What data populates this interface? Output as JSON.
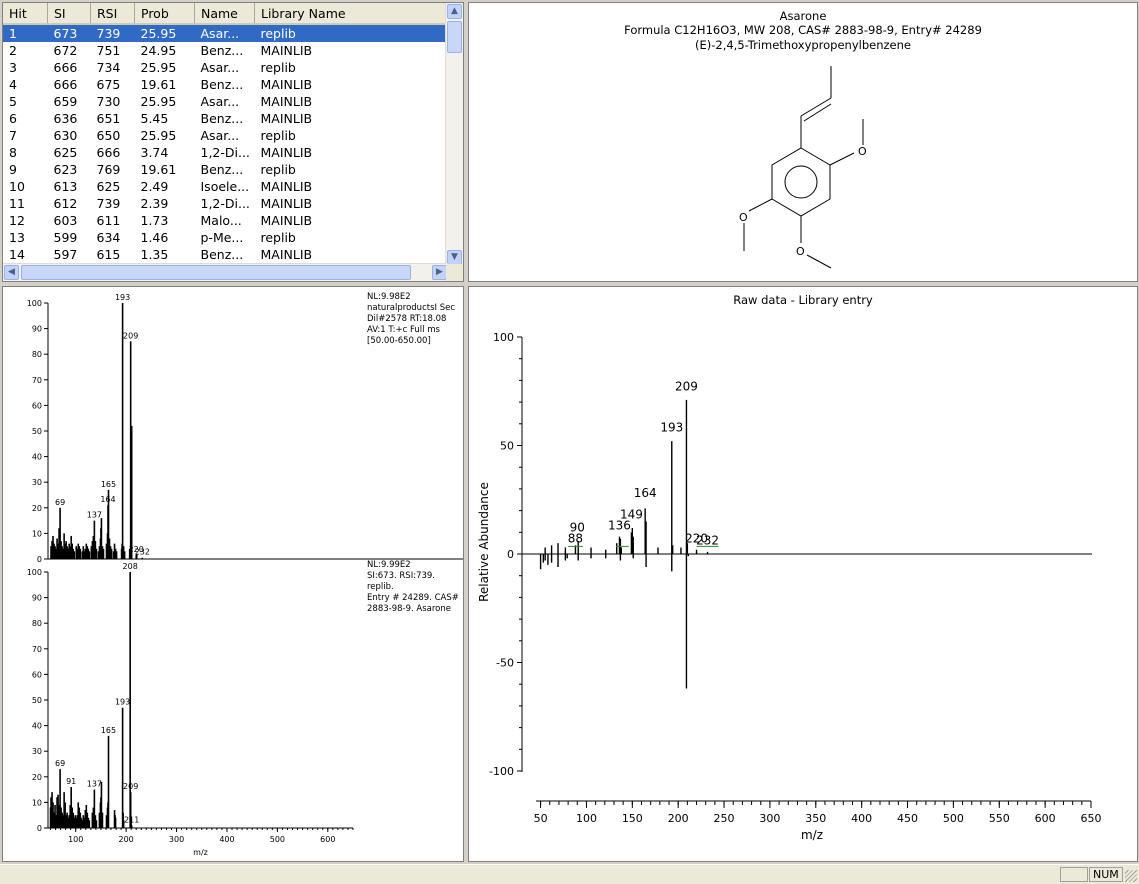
{
  "hitlist": {
    "columns": [
      "Hit",
      "SI",
      "RSI",
      "Prob",
      "Name",
      "Library Name"
    ],
    "rows": [
      [
        "1",
        "673",
        "739",
        "25.95",
        "Asar...",
        "replib"
      ],
      [
        "2",
        "672",
        "751",
        "24.95",
        "Benz...",
        "MAINLIB"
      ],
      [
        "3",
        "666",
        "734",
        "25.95",
        "Asar...",
        "replib"
      ],
      [
        "4",
        "666",
        "675",
        "19.61",
        "Benz...",
        "MAINLIB"
      ],
      [
        "5",
        "659",
        "730",
        "25.95",
        "Asar...",
        "MAINLIB"
      ],
      [
        "6",
        "636",
        "651",
        "5.45",
        "Benz...",
        "MAINLIB"
      ],
      [
        "7",
        "630",
        "650",
        "25.95",
        "Asar...",
        "replib"
      ],
      [
        "8",
        "625",
        "666",
        "3.74",
        "1,2-Di...",
        "MAINLIB"
      ],
      [
        "9",
        "623",
        "769",
        "19.61",
        "Benz...",
        "replib"
      ],
      [
        "10",
        "613",
        "625",
        "2.49",
        "Isoele...",
        "MAINLIB"
      ],
      [
        "11",
        "612",
        "739",
        "2.39",
        "1,2-Di...",
        "MAINLIB"
      ],
      [
        "12",
        "603",
        "611",
        "1.73",
        "Malo...",
        "MAINLIB"
      ],
      [
        "13",
        "599",
        "634",
        "1.46",
        "p-Me...",
        "replib"
      ],
      [
        "14",
        "597",
        "615",
        "1.35",
        "Benz...",
        "MAINLIB"
      ]
    ],
    "selected_row": 0
  },
  "structure": {
    "name": "Asarone",
    "formula_line": "Formula C12H16O3, MW 208, CAS# 2883-98-9, Entry# 24289",
    "iupac": "(E)-2,4,5-Trimethoxypropenylbenzene",
    "atom_label": "O"
  },
  "top_spectrum": {
    "info": [
      "NL:9.98E2",
      "naturalproductsI Sec",
      "Dil#2578  RT:18.08",
      "AV:1 T:+c Full ms",
      "[50.00-650.00]"
    ],
    "y_ticks": [
      "100",
      "90",
      "80",
      "70",
      "60",
      "50",
      "40",
      "30",
      "20",
      "10",
      "0"
    ],
    "peak_labels": [
      {
        "mz": 193,
        "rel": 100,
        "text": "193"
      },
      {
        "mz": 209,
        "rel": 85,
        "text": "209"
      },
      {
        "mz": 69,
        "rel": 20,
        "text": "69"
      },
      {
        "mz": 164,
        "rel": 21,
        "text": "164"
      },
      {
        "mz": 165,
        "rel": 27,
        "text": "165"
      },
      {
        "mz": 137,
        "rel": 15,
        "text": "137"
      },
      {
        "mz": 220,
        "rel": 1.5,
        "text": "220"
      },
      {
        "mz": 232,
        "rel": 0.5,
        "text": "232"
      }
    ]
  },
  "bottom_spectrum": {
    "info": [
      "NL:9.99E2",
      "SI:673. RSI:739. replib.",
      "Entry # 24289. CAS#",
      "2883-98-9. Asarone"
    ],
    "y_ticks": [
      "100",
      "90",
      "80",
      "70",
      "60",
      "50",
      "40",
      "30",
      "20",
      "10",
      "0"
    ],
    "x_ticks": [
      "100",
      "200",
      "300",
      "400",
      "500",
      "600"
    ],
    "x_label": "m/z",
    "peak_labels": [
      {
        "mz": 208,
        "rel": 100,
        "text": "208"
      },
      {
        "mz": 193,
        "rel": 47,
        "text": "193"
      },
      {
        "mz": 165,
        "rel": 36,
        "text": "165"
      },
      {
        "mz": 69,
        "rel": 23,
        "text": "69"
      },
      {
        "mz": 91,
        "rel": 16,
        "text": "91"
      },
      {
        "mz": 137,
        "rel": 15,
        "text": "137"
      },
      {
        "mz": 209,
        "rel": 14,
        "text": "209"
      },
      {
        "mz": 211,
        "rel": 1,
        "text": "211"
      }
    ]
  },
  "raw_panel": {
    "title": "Raw data - Library entry",
    "y_label": "Relative Abundance",
    "x_label": "m/z",
    "y_ticks": [
      "100",
      "50",
      "0",
      "-50",
      "-100"
    ],
    "x_ticks": [
      "50",
      "100",
      "150",
      "200",
      "250",
      "300",
      "350",
      "400",
      "450",
      "500",
      "550",
      "600",
      "650"
    ]
  },
  "chart_data": {
    "type": "bar",
    "title": "Raw data - Library entry",
    "xlabel": "m/z",
    "ylabel": "Relative Abundance",
    "xlim": [
      45,
      650
    ],
    "ylim": [
      -100,
      100
    ],
    "series": [
      {
        "name": "",
        "x": [
          55,
          62,
          69,
          77,
          88,
          91,
          105,
          121,
          133,
          136,
          137,
          138,
          149,
          150,
          151,
          164,
          165,
          178,
          193,
          194,
          203,
          209,
          210,
          220,
          232
        ],
        "values": [
          3,
          4,
          5,
          3,
          4,
          6,
          3,
          2,
          5,
          8,
          7,
          3,
          10,
          12,
          8,
          21,
          15,
          3,
          52,
          4,
          3,
          71,
          5,
          2,
          1
        ]
      },
      {
        "name": "",
        "x": [
          50,
          53,
          55,
          58,
          62,
          69,
          77,
          79,
          91,
          105,
          121,
          137,
          151,
          165,
          193,
          209,
          211
        ],
        "values": [
          -7,
          -4,
          -3,
          -5,
          -4,
          -6,
          -3,
          -2,
          -3,
          -2,
          -2,
          -3,
          -2,
          -6,
          -8,
          -62,
          -1
        ]
      }
    ],
    "peak_labels": [
      "88",
      "90",
      "136",
      "149",
      "164",
      "193",
      "209",
      "220",
      "232"
    ]
  },
  "status": {
    "num": "NUM"
  }
}
